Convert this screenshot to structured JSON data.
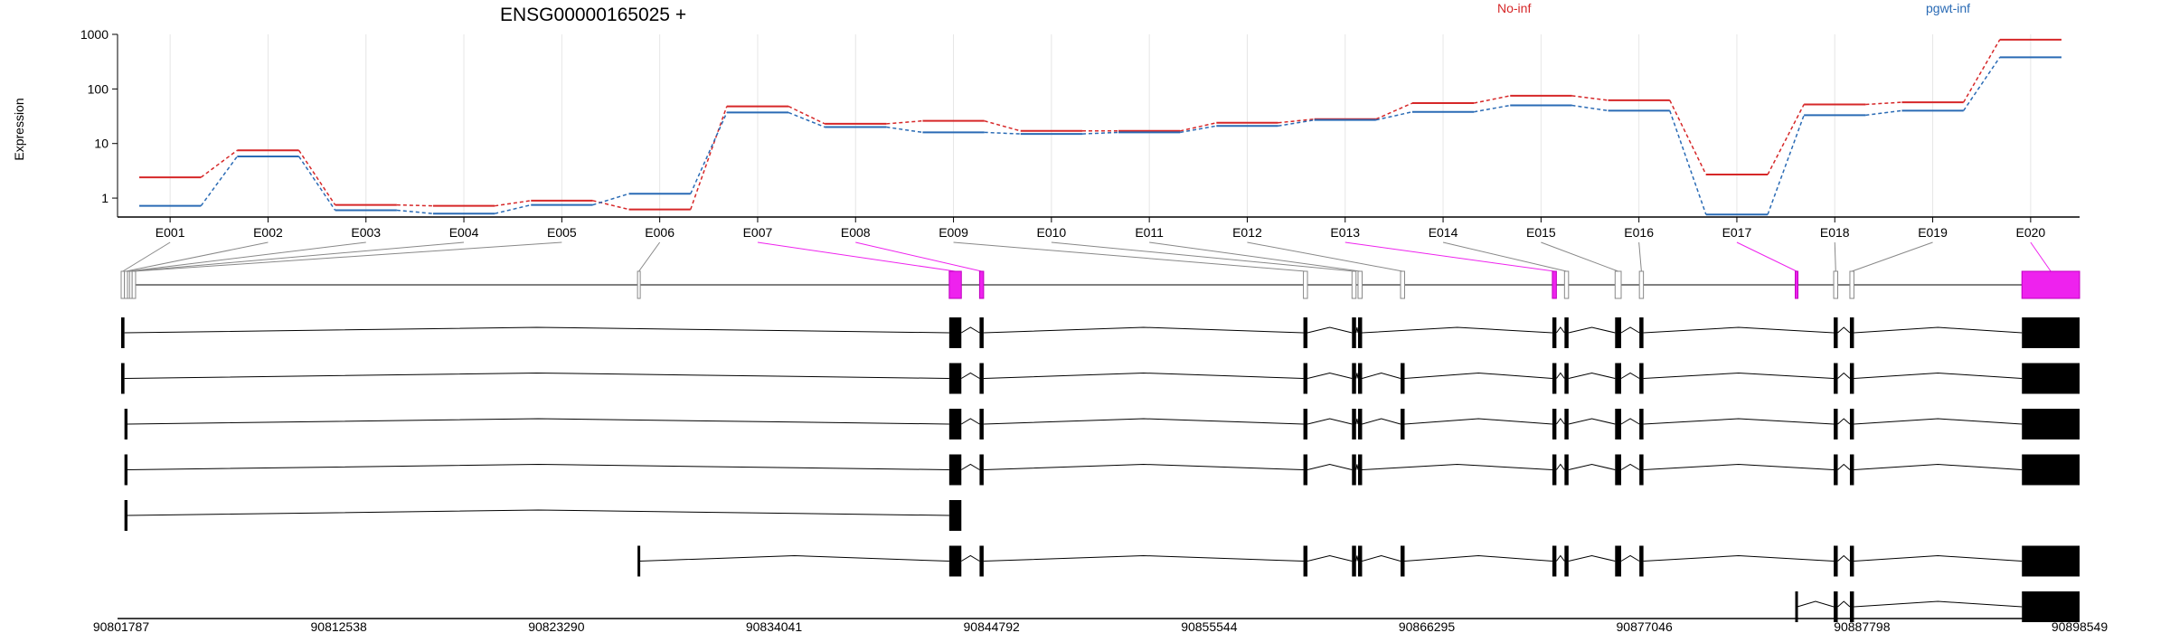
{
  "title": "ENSG00000165025 +",
  "colors": {
    "No-inf": "#d62728",
    "pgwt-inf": "#2a6bb5",
    "highlight": "#ee22ee",
    "exon_outline": "#888888",
    "exon_fill": "#000000"
  },
  "chart_data": [
    {
      "type": "line",
      "title": "ENSG00000165025 +",
      "ylabel": "Expression",
      "yscale": "log",
      "ylim": [
        0.45,
        1000
      ],
      "yticks": [
        "1",
        "10",
        "100",
        "1000"
      ],
      "legend_placement": "top",
      "categories": [
        "E001",
        "E002",
        "E003",
        "E004",
        "E005",
        "E006",
        "E007",
        "E008",
        "E009",
        "E010",
        "E011",
        "E012",
        "E013",
        "E014",
        "E015",
        "E016",
        "E017",
        "E018",
        "E019",
        "E020"
      ],
      "series": [
        {
          "name": "No-inf",
          "values": [
            2.4,
            7.5,
            0.75,
            0.72,
            0.9,
            0.62,
            48,
            23,
            26,
            17,
            17,
            24,
            28,
            55,
            75,
            62,
            2.7,
            52,
            57,
            800
          ]
        },
        {
          "name": "pgwt-inf",
          "values": [
            0.72,
            5.8,
            0.6,
            0.52,
            0.75,
            1.2,
            37,
            20,
            16,
            15,
            16,
            21,
            27,
            38,
            50,
            40,
            0.5,
            33,
            40,
            380
          ]
        }
      ]
    },
    {
      "type": "gene_model",
      "genomic_range": [
        90801787,
        90898549
      ],
      "xticks": [
        "90801787",
        "90812538",
        "90823290",
        "90834041",
        "90844792",
        "90855544",
        "90866295",
        "90877046",
        "90887798",
        "90898549"
      ],
      "exon_bins": [
        {
          "id": "E001",
          "start": 90801787,
          "end": 90801950,
          "highlight": false
        },
        {
          "id": "E002",
          "start": 90801950,
          "end": 90802100,
          "highlight": false
        },
        {
          "id": "E003",
          "start": 90802100,
          "end": 90802200,
          "highlight": false
        },
        {
          "id": "E004",
          "start": 90802200,
          "end": 90802330,
          "highlight": false
        },
        {
          "id": "E005",
          "start": 90802330,
          "end": 90802500,
          "highlight": false
        },
        {
          "id": "E006",
          "start": 90827300,
          "end": 90827400,
          "highlight": false
        },
        {
          "id": "E007",
          "start": 90842700,
          "end": 90843300,
          "highlight": true
        },
        {
          "id": "E008",
          "start": 90844200,
          "end": 90844400,
          "highlight": true
        },
        {
          "id": "E009",
          "start": 90860200,
          "end": 90860400,
          "highlight": false
        },
        {
          "id": "E010",
          "start": 90862600,
          "end": 90862800,
          "highlight": false
        },
        {
          "id": "E011",
          "start": 90862900,
          "end": 90863100,
          "highlight": false
        },
        {
          "id": "E012",
          "start": 90865000,
          "end": 90865200,
          "highlight": false
        },
        {
          "id": "E013",
          "start": 90872500,
          "end": 90872700,
          "highlight": true
        },
        {
          "id": "E014",
          "start": 90873100,
          "end": 90873300,
          "highlight": false
        },
        {
          "id": "E015",
          "start": 90875600,
          "end": 90875900,
          "highlight": false
        },
        {
          "id": "E016",
          "start": 90876800,
          "end": 90877000,
          "highlight": false
        },
        {
          "id": "E017",
          "start": 90884500,
          "end": 90884600,
          "highlight": true
        },
        {
          "id": "E018",
          "start": 90886400,
          "end": 90886600,
          "highlight": false
        },
        {
          "id": "E019",
          "start": 90887200,
          "end": 90887400,
          "highlight": false
        },
        {
          "id": "E020",
          "start": 90895700,
          "end": 90898549,
          "highlight": true
        }
      ],
      "transcripts": [
        {
          "exons": [
            [
              90801787,
              90801950
            ],
            [
              90842700,
              90843300
            ],
            [
              90844200,
              90844400
            ],
            [
              90860200,
              90860400
            ],
            [
              90862600,
              90862800
            ],
            [
              90862900,
              90863100
            ],
            [
              90872500,
              90872700
            ],
            [
              90873100,
              90873300
            ],
            [
              90875600,
              90875900
            ],
            [
              90876800,
              90877000
            ],
            [
              90886400,
              90886600
            ],
            [
              90887200,
              90887400
            ],
            [
              90895700,
              90898549
            ]
          ]
        },
        {
          "exons": [
            [
              90801787,
              90801950
            ],
            [
              90842700,
              90843300
            ],
            [
              90844200,
              90844400
            ],
            [
              90860200,
              90860400
            ],
            [
              90862600,
              90862800
            ],
            [
              90862900,
              90863100
            ],
            [
              90865000,
              90865200
            ],
            [
              90872500,
              90872700
            ],
            [
              90873100,
              90873300
            ],
            [
              90875600,
              90875900
            ],
            [
              90876800,
              90877000
            ],
            [
              90886400,
              90886600
            ],
            [
              90887200,
              90887400
            ],
            [
              90895700,
              90898549
            ]
          ]
        },
        {
          "exons": [
            [
              90801950,
              90802100
            ],
            [
              90842700,
              90843300
            ],
            [
              90844200,
              90844400
            ],
            [
              90860200,
              90860400
            ],
            [
              90862600,
              90862800
            ],
            [
              90862900,
              90863100
            ],
            [
              90865000,
              90865200
            ],
            [
              90872500,
              90872700
            ],
            [
              90873100,
              90873300
            ],
            [
              90875600,
              90875900
            ],
            [
              90876800,
              90877000
            ],
            [
              90886400,
              90886600
            ],
            [
              90887200,
              90887400
            ],
            [
              90895700,
              90898549
            ]
          ]
        },
        {
          "exons": [
            [
              90801950,
              90802100
            ],
            [
              90842700,
              90843300
            ],
            [
              90844200,
              90844400
            ],
            [
              90860200,
              90860400
            ],
            [
              90862600,
              90862800
            ],
            [
              90862900,
              90863100
            ],
            [
              90872500,
              90872700
            ],
            [
              90873100,
              90873300
            ],
            [
              90875600,
              90875900
            ],
            [
              90876800,
              90877000
            ],
            [
              90886400,
              90886600
            ],
            [
              90887200,
              90887400
            ],
            [
              90895700,
              90898549
            ]
          ]
        },
        {
          "exons": [
            [
              90801950,
              90802100
            ],
            [
              90842700,
              90843300
            ]
          ]
        },
        {
          "exons": [
            [
              90827300,
              90827400
            ],
            [
              90842700,
              90843300
            ],
            [
              90844200,
              90844400
            ],
            [
              90860200,
              90860400
            ],
            [
              90862600,
              90862800
            ],
            [
              90862900,
              90863100
            ],
            [
              90865000,
              90865200
            ],
            [
              90872500,
              90872700
            ],
            [
              90873100,
              90873300
            ],
            [
              90875600,
              90875900
            ],
            [
              90876800,
              90877000
            ],
            [
              90886400,
              90886600
            ],
            [
              90887200,
              90887400
            ],
            [
              90895700,
              90898549
            ]
          ]
        },
        {
          "exons": [
            [
              90884500,
              90884600
            ],
            [
              90886400,
              90886600
            ],
            [
              90887200,
              90887400
            ],
            [
              90895700,
              90898549
            ]
          ]
        }
      ]
    }
  ]
}
